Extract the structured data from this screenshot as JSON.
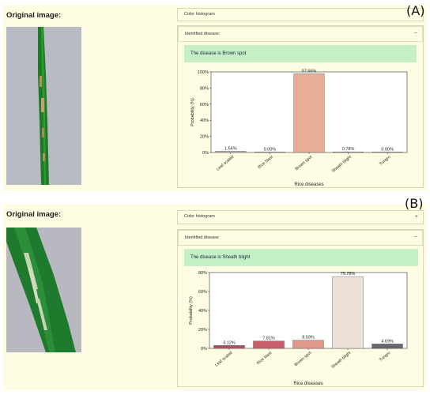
{
  "panels": [
    {
      "label": "(A)",
      "original_title": "Original image:",
      "color_histogram_label": "Color histogram",
      "identified_label": "Identified disease:",
      "collapse_sign": "−",
      "disease_text": "The disease is Brown spot"
    },
    {
      "label": "(B)",
      "original_title": "Original image:",
      "color_histogram_label": "Color histogram",
      "expand_sign": "+",
      "identified_label": "Identified disease",
      "collapse_sign": "−",
      "disease_text": "The disease is Sheath blight"
    }
  ],
  "chart_data": [
    {
      "type": "bar",
      "categories": [
        "Leaf scaled",
        "Rice blast",
        "Brown spot",
        "Sheath blight",
        "Tungro"
      ],
      "values": [
        1.56,
        0.0,
        97.66,
        0.78,
        0.0
      ],
      "value_labels": [
        "1.56%",
        "0.00%",
        "97.66%",
        "0.78%",
        "0.00%"
      ],
      "colors": [
        "#c9b3b8",
        "#c9b3b8",
        "#e8ad96",
        "#c9b3b8",
        "#c9b3b8"
      ],
      "xlabel": "Rice diseases",
      "ylabel": "Probability (%)",
      "ylim": [
        0,
        100
      ],
      "yticks": [
        0,
        20,
        40,
        60,
        80,
        100
      ],
      "ytick_labels": [
        "0%",
        "20%",
        "40%",
        "60%",
        "80%",
        "100%"
      ],
      "grid": false
    },
    {
      "type": "bar",
      "categories": [
        "Leaf scaled",
        "Rice blast",
        "Brown spot",
        "Sheath blight",
        "Tungro"
      ],
      "values": [
        3.12,
        7.81,
        8.59,
        75.78,
        4.69
      ],
      "value_labels": [
        "3.12%",
        "7.81%",
        "8.59%",
        "75.78%",
        "4.69%"
      ],
      "colors": [
        "#b05068",
        "#c8606a",
        "#e09888",
        "#ece0d8",
        "#6a6670"
      ],
      "xlabel": "Rice diseases",
      "ylabel": "Probability (%)",
      "ylim": [
        0,
        80
      ],
      "yticks": [
        0,
        20,
        40,
        60,
        80
      ],
      "ytick_labels": [
        "0%",
        "20%",
        "40%",
        "60%",
        "80%"
      ],
      "grid": false
    }
  ]
}
